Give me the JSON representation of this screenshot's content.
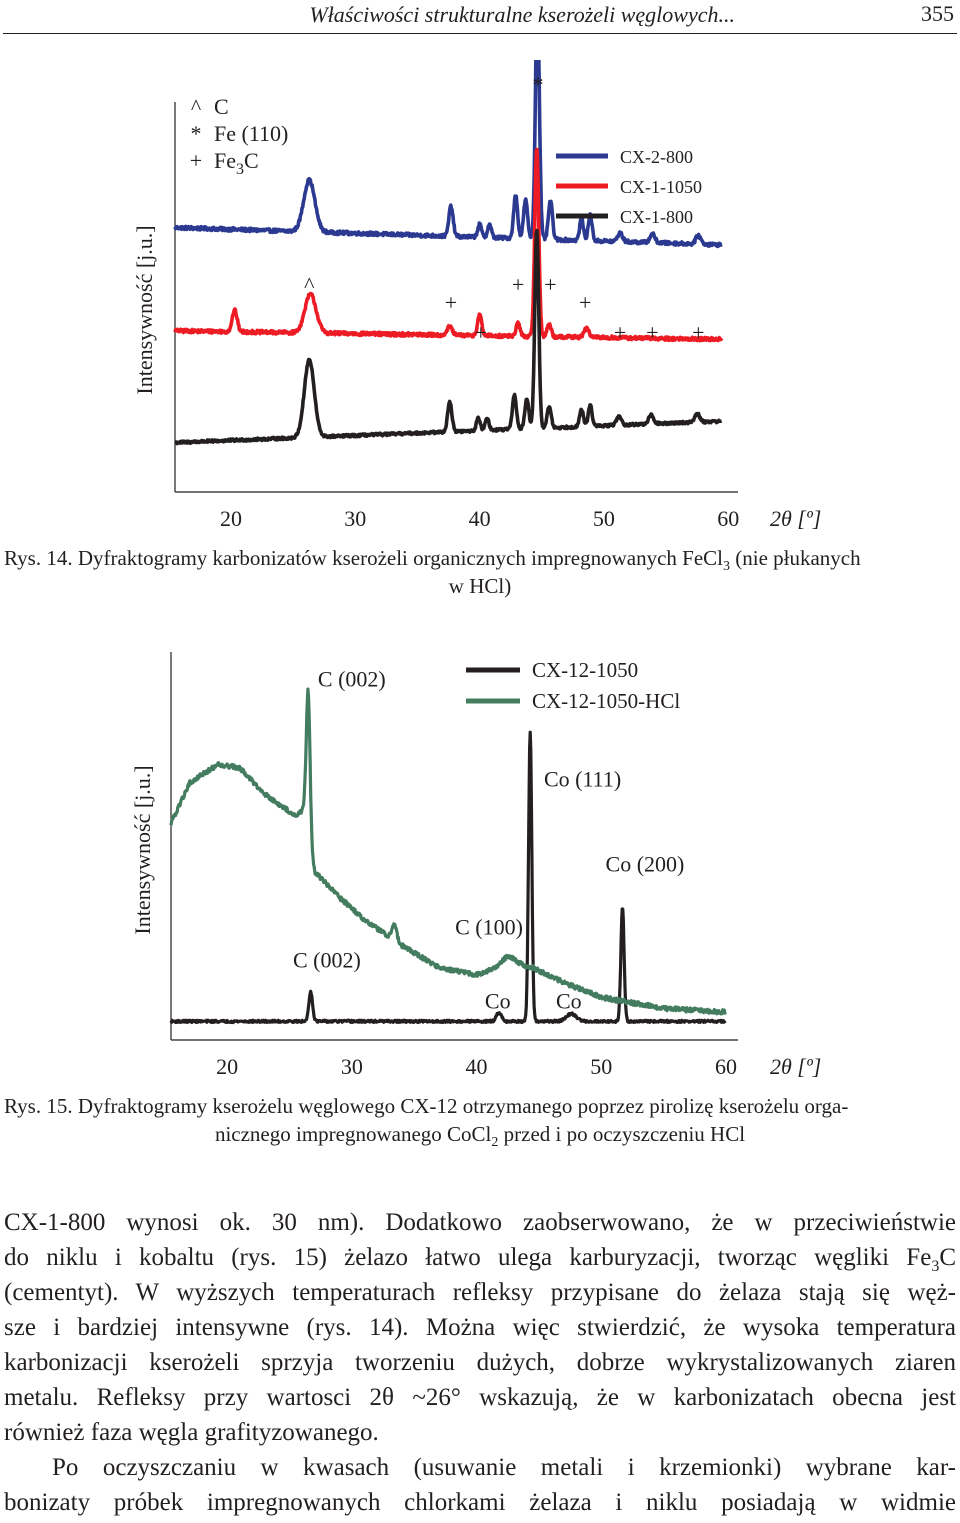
{
  "header": {
    "title": "Właściwości strukturalne kserożeli węglowych...",
    "page_number": "355"
  },
  "figure1": {
    "caption_line1": "Rys. 14. Dyfraktogramy karbonizatów kserożeli organicznych impregnowanych FeCl",
    "caption_sub": "3",
    "caption_line1_end": " (nie płukanych",
    "caption_line2": "w HCl)"
  },
  "figure2": {
    "caption_line1": "Rys. 15. Dyfraktogramy kserożelu węglowego CX-12 otrzymanego poprzez pirolizę kserożelu orga-",
    "caption_line2_a": "nicznego impregnowanego CoCl",
    "caption_sub": "2",
    "caption_line2_b": " przed i po oczyszczeniu HCl"
  },
  "colors": {
    "blue": "#2b3990",
    "red": "#ed1c24",
    "black": "#231f20",
    "green": "#437c5f"
  },
  "chart_data": [
    {
      "type": "line",
      "xlabel": "2θ [º]",
      "ylabel": "Intensywność [j.u.]",
      "xlim": [
        15.5,
        59.5
      ],
      "xticks": [
        20,
        30,
        40,
        50,
        60
      ],
      "symbol_legend": [
        {
          "symbol": "^",
          "label": "C"
        },
        {
          "symbol": "*",
          "label": "Fe (110)"
        },
        {
          "symbol": "+",
          "label": "Fe",
          "sub": "3",
          "label_end": "C"
        }
      ],
      "peak_markers": [
        {
          "symbol": "^",
          "x": 26.3,
          "level": "low"
        },
        {
          "symbol": "+",
          "x": 37.7,
          "level": "mid"
        },
        {
          "symbol": "+",
          "x": 40.1,
          "level": "low"
        },
        {
          "symbol": "+",
          "x": 43.1,
          "level": "high"
        },
        {
          "symbol": "*",
          "x": 44.7,
          "level": "top"
        },
        {
          "symbol": "+",
          "x": 45.7,
          "level": "high"
        },
        {
          "symbol": "+",
          "x": 48.5,
          "level": "mid"
        },
        {
          "symbol": "+",
          "x": 51.3,
          "level": "low"
        },
        {
          "symbol": "+",
          "x": 53.9,
          "level": "low"
        },
        {
          "symbol": "+",
          "x": 57.6,
          "level": "low"
        }
      ],
      "series": [
        {
          "name": "CX-2-800",
          "color": "#2b3990",
          "offset": 0.68,
          "noise": 0.008,
          "baseline_slope": -0.04,
          "peaks": [
            [
              26.3,
              0.12,
              0.45
            ],
            [
              37.7,
              0.07,
              0.17
            ],
            [
              40.0,
              0.03,
              0.15
            ],
            [
              40.8,
              0.03,
              0.15
            ],
            [
              42.9,
              0.1,
              0.16
            ],
            [
              43.7,
              0.09,
              0.16
            ],
            [
              44.65,
              0.55,
              0.16
            ],
            [
              45.7,
              0.09,
              0.16
            ],
            [
              48.2,
              0.05,
              0.15
            ],
            [
              48.9,
              0.06,
              0.15
            ],
            [
              51.3,
              0.02,
              0.2
            ],
            [
              53.9,
              0.02,
              0.2
            ],
            [
              57.6,
              0.02,
              0.2
            ]
          ]
        },
        {
          "name": "CX-1-1050",
          "color": "#ed1c24",
          "offset": 0.44,
          "noise": 0.008,
          "baseline_slope": -0.02,
          "peaks": [
            [
              20.3,
              0.05,
              0.2
            ],
            [
              26.4,
              0.09,
              0.45
            ],
            [
              37.6,
              0.02,
              0.2
            ],
            [
              40.0,
              0.05,
              0.16
            ],
            [
              43.1,
              0.03,
              0.16
            ],
            [
              44.6,
              0.44,
              0.16
            ],
            [
              45.6,
              0.03,
              0.16
            ],
            [
              48.6,
              0.02,
              0.2
            ]
          ]
        },
        {
          "name": "CX-1-800",
          "color": "#231f20",
          "offset": 0.18,
          "noise": 0.006,
          "baseline_slope": 0.05,
          "peaks": [
            [
              26.3,
              0.18,
              0.4
            ],
            [
              37.6,
              0.07,
              0.17
            ],
            [
              39.9,
              0.03,
              0.15
            ],
            [
              40.6,
              0.03,
              0.15
            ],
            [
              42.8,
              0.08,
              0.16
            ],
            [
              43.8,
              0.07,
              0.16
            ],
            [
              44.6,
              0.46,
              0.16
            ],
            [
              45.6,
              0.05,
              0.16
            ],
            [
              48.2,
              0.04,
              0.15
            ],
            [
              48.9,
              0.05,
              0.15
            ],
            [
              51.2,
              0.02,
              0.2
            ],
            [
              53.8,
              0.02,
              0.2
            ],
            [
              57.5,
              0.02,
              0.2
            ]
          ]
        }
      ]
    },
    {
      "type": "line",
      "xlabel": "2θ [º]",
      "ylabel": "Intensywność [j.u.]",
      "xlim": [
        15.5,
        60
      ],
      "xticks": [
        20,
        30,
        40,
        50,
        60
      ],
      "annotations": [
        {
          "text": "C (002)",
          "x": 30.0,
          "y": 0.95
        },
        {
          "text": "Co (111)",
          "x": 48.5,
          "y": 0.68
        },
        {
          "text": "Co (200)",
          "x": 53.5,
          "y": 0.45
        },
        {
          "text": "C (100)",
          "x": 41.0,
          "y": 0.28
        },
        {
          "text": "C (002)",
          "x": 28.0,
          "y": 0.19
        },
        {
          "text": "Co",
          "x": 41.7,
          "y": 0.08
        },
        {
          "text": "Co",
          "x": 47.4,
          "y": 0.08
        }
      ],
      "series": [
        {
          "name": "CX-12-1050",
          "color": "#231f20",
          "noise": 0.006,
          "baseline": [
            0.045,
            0.0
          ],
          "peaks": [
            [
              26.7,
              0.08,
              0.15
            ],
            [
              41.8,
              0.025,
              0.2
            ],
            [
              44.3,
              0.78,
              0.13
            ],
            [
              47.6,
              0.02,
              0.4
            ],
            [
              51.7,
              0.31,
              0.13
            ]
          ]
        },
        {
          "name": "CX-12-1050-HCl",
          "color": "#437c5f",
          "noise": 0.012,
          "envelope": [
            [
              15.5,
              0.58
            ],
            [
              17.0,
              0.69
            ],
            [
              19.3,
              0.74
            ],
            [
              21.0,
              0.73
            ],
            [
              23.0,
              0.66
            ],
            [
              25.5,
              0.6
            ],
            [
              26.2,
              0.62
            ],
            [
              27.0,
              0.45
            ],
            [
              29.0,
              0.38
            ],
            [
              31.0,
              0.32
            ],
            [
              34.0,
              0.25
            ],
            [
              37.0,
              0.19
            ],
            [
              40.0,
              0.17
            ],
            [
              42.5,
              0.2
            ],
            [
              44.5,
              0.19
            ],
            [
              47.0,
              0.15
            ],
            [
              50.0,
              0.11
            ],
            [
              55.0,
              0.08
            ],
            [
              60.0,
              0.07
            ]
          ],
          "peaks": [
            [
              26.5,
              0.38,
              0.15
            ],
            [
              33.4,
              0.04,
              0.2
            ],
            [
              42.6,
              0.02,
              0.6
            ]
          ]
        }
      ]
    }
  ],
  "body": {
    "line1": "CX-1-800 wynosi ok. 30 nm). Dodatkowo zaobserwowano, że w przeciwieństwie",
    "line2_a": "do niklu i kobaltu (rys. 15) żelazo łatwo ulega karburyzacji, tworząc węgliki Fe",
    "line2_sub": "3",
    "line2_b": "C",
    "line3": "(cementyt). W wyższych temperaturach refleksy przypisane do żelaza stają się węż-",
    "line4": "sze i bardziej intensywne (rys. 14). Można więc stwierdzić, że wysoka temperatura",
    "line5": "karbonizacji kserożeli sprzyja tworzeniu dużych, dobrze wykrystalizowanych ziaren",
    "line6": "metalu. Refleksy przy wartosci 2θ ~26° wskazują, że w karbonizatach obecna jest",
    "line7": "również faza węgla grafityzowanego.",
    "line8": "Po oczyszczaniu w kwasach (usuwanie metali i krzemionki) wybrane kar-",
    "line9": "bonizaty próbek impregnowanych chlorkami żelaza i niklu posiadają w widmie"
  }
}
